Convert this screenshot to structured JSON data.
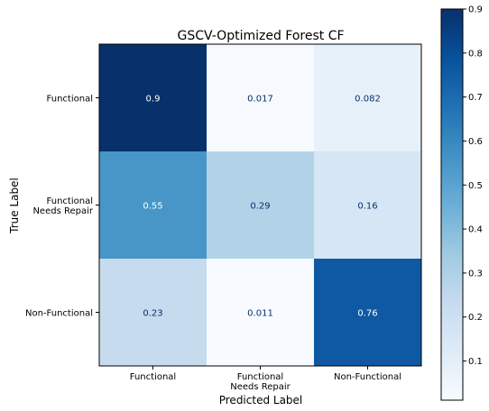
{
  "chart_data": {
    "type": "heatmap",
    "title": "GSCV-Optimized Forest CF",
    "xlabel": "Predicted Label",
    "ylabel": "True Label",
    "x_categories": [
      [
        "Functional"
      ],
      [
        "Functional",
        "Needs Repair"
      ],
      [
        "Non-Functional"
      ]
    ],
    "y_categories": [
      [
        "Functional"
      ],
      [
        "Functional",
        "Needs Repair"
      ],
      [
        "Non-Functional"
      ]
    ],
    "values": [
      [
        0.9,
        0.017,
        0.082
      ],
      [
        0.55,
        0.29,
        0.16
      ],
      [
        0.23,
        0.011,
        0.76
      ]
    ],
    "value_labels": [
      [
        "0.9",
        "0.017",
        "0.082"
      ],
      [
        "0.55",
        "0.29",
        "0.16"
      ],
      [
        "0.23",
        "0.011",
        "0.76"
      ]
    ],
    "colorbar": {
      "colormap": "Blues",
      "min": 0.011,
      "max": 0.9,
      "ticks": [
        0.1,
        0.2,
        0.3,
        0.4,
        0.5,
        0.6,
        0.7,
        0.8,
        0.9
      ],
      "tick_labels": [
        "0.1",
        "0.2",
        "0.3",
        "0.4",
        "0.5",
        "0.6",
        "0.7",
        "0.8",
        "0.9"
      ]
    },
    "grid": false
  }
}
